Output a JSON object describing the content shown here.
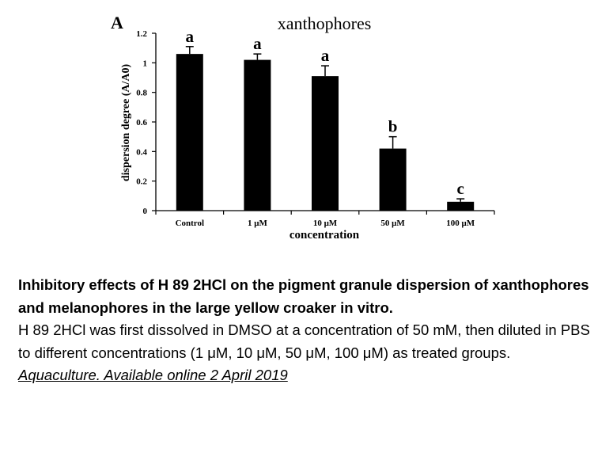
{
  "chart_data": {
    "type": "bar",
    "panel_label": "A",
    "title": "xanthophores",
    "xlabel": "concentration",
    "ylabel": "dispersion degree (A/A0)",
    "categories": [
      "Control",
      "1 μM",
      "10 μM",
      "50 μM",
      "100 μM"
    ],
    "values": [
      1.06,
      1.02,
      0.91,
      0.42,
      0.06
    ],
    "errors": [
      0.05,
      0.04,
      0.07,
      0.08,
      0.02
    ],
    "significance": [
      "a",
      "a",
      "a",
      "b",
      "c"
    ],
    "ylim": [
      0,
      1.2
    ],
    "yticks": [
      "0",
      "0.2",
      "0.4",
      "0.6",
      "0.8",
      "1",
      "1.2"
    ],
    "grid": false,
    "bar_color": "#000000"
  },
  "caption": {
    "title_line": "Inhibitory effects of H 89 2HCl on the pigment granule dispersion of xanthophores and melanophores in the large yellow croaker in vitro.",
    "body": "H 89 2HCl was first dissolved in DMSO at a concentration of 50 mM, then diluted in PBS to different concentrations (1 μM, 10 μM, 50 μM, 100 μM) as treated groups.",
    "source": " Aquaculture. Available online 2 April 2019"
  }
}
